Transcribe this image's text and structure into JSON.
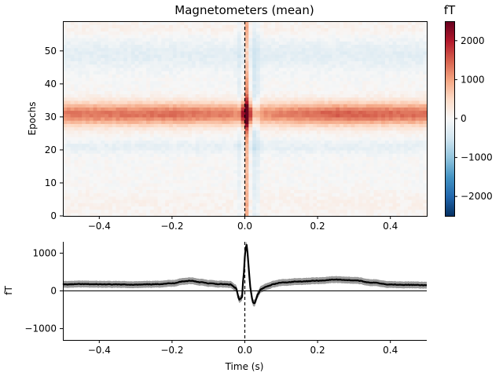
{
  "chart_data": [
    {
      "type": "heatmap",
      "title": "Magnetometers (mean)",
      "xlabel": "",
      "ylabel": "Epochs",
      "xlim": [
        -0.5,
        0.5
      ],
      "ylim": [
        0,
        59
      ],
      "x_ticks": [
        -0.4,
        -0.2,
        0.0,
        0.2,
        0.4
      ],
      "x_tick_labels": [
        "−0.4",
        "−0.2",
        "0.0",
        "0.2",
        "0.4"
      ],
      "y_ticks": [
        0,
        10,
        20,
        30,
        40,
        50
      ],
      "y_tick_labels": [
        "0",
        "10",
        "20",
        "30",
        "40",
        "50"
      ],
      "event_line_x": 0.0,
      "colorbar": {
        "label": "fT",
        "vmin": -2500,
        "vmax": 2500,
        "ticks": [
          2000,
          1000,
          0,
          -1000,
          -2000
        ],
        "tick_labels": [
          "2000",
          "1000",
          "0",
          "−1000",
          "−2000"
        ],
        "colormap": "RdBu_r",
        "colors": [
          "#053061",
          "#2166ac",
          "#4393c3",
          "#92c5de",
          "#d1e5f0",
          "#f7f7f7",
          "#fddbc7",
          "#f4a582",
          "#d6604d",
          "#b2182b",
          "#67001f"
        ]
      },
      "n_time_bins": 96,
      "n_epochs": 59,
      "spatial_pattern_fT": {
        "epoch_band": [
          {
            "epoch_center": 31,
            "half_width": 3.5,
            "level": 1400
          },
          {
            "epoch_center": 49,
            "half_width": 4.5,
            "level": -250
          },
          {
            "epoch_center": 21,
            "half_width": 2.0,
            "level": -200
          },
          {
            "epoch_center": 4,
            "half_width": 4.0,
            "level": 100
          },
          {
            "epoch_center": 57,
            "half_width": 2.0,
            "level": 120
          }
        ],
        "time_profile_in_band": [
          {
            "t": -0.5,
            "factor": 0.95
          },
          {
            "t": -0.2,
            "factor": 1.0
          },
          {
            "t": -0.02,
            "factor": 0.9
          },
          {
            "t": 0.0,
            "factor": 1.8
          },
          {
            "t": 0.03,
            "factor": 0.8
          },
          {
            "t": 0.25,
            "factor": 1.1
          },
          {
            "t": 0.5,
            "factor": 1.0
          }
        ],
        "vertical_stripes": [
          {
            "t": -0.008,
            "half_width": 0.012,
            "level": -400
          },
          {
            "t": 0.004,
            "half_width": 0.008,
            "level": 1500
          },
          {
            "t": 0.028,
            "half_width": 0.012,
            "level": -500
          }
        ]
      }
    },
    {
      "type": "line",
      "title": "",
      "xlabel": "Time (s)",
      "ylabel": "fT",
      "xlim": [
        -0.5,
        0.5
      ],
      "ylim": [
        -1300,
        1300
      ],
      "x_ticks": [
        -0.4,
        -0.2,
        0.0,
        0.2,
        0.4
      ],
      "x_tick_labels": [
        "−0.4",
        "−0.2",
        "0.0",
        "0.2",
        "0.4"
      ],
      "y_ticks": [
        -1000,
        0,
        1000
      ],
      "y_tick_labels": [
        "−1000",
        "0",
        "1000"
      ],
      "event_line_x": 0.0,
      "zero_line": true,
      "confidence_halfwidth": 90,
      "series": [
        {
          "name": "mean",
          "color": "#000000",
          "band_color": "#9a9a9a",
          "x": [
            -0.5,
            -0.45,
            -0.4,
            -0.35,
            -0.3,
            -0.25,
            -0.2,
            -0.17,
            -0.15,
            -0.12,
            -0.1,
            -0.07,
            -0.04,
            -0.025,
            -0.015,
            -0.008,
            -0.004,
            0.0,
            0.004,
            0.008,
            0.012,
            0.017,
            0.022,
            0.027,
            0.031,
            0.036,
            0.045,
            0.06,
            0.08,
            0.1,
            0.15,
            0.2,
            0.25,
            0.3,
            0.35,
            0.4,
            0.45,
            0.5
          ],
          "values": [
            170,
            180,
            175,
            170,
            165,
            175,
            200,
            250,
            270,
            230,
            200,
            180,
            170,
            80,
            -230,
            -180,
            300,
            900,
            1250,
            1000,
            400,
            -50,
            -300,
            -330,
            -220,
            -80,
            50,
            120,
            180,
            220,
            250,
            270,
            300,
            280,
            220,
            170,
            160,
            150
          ]
        }
      ]
    }
  ]
}
